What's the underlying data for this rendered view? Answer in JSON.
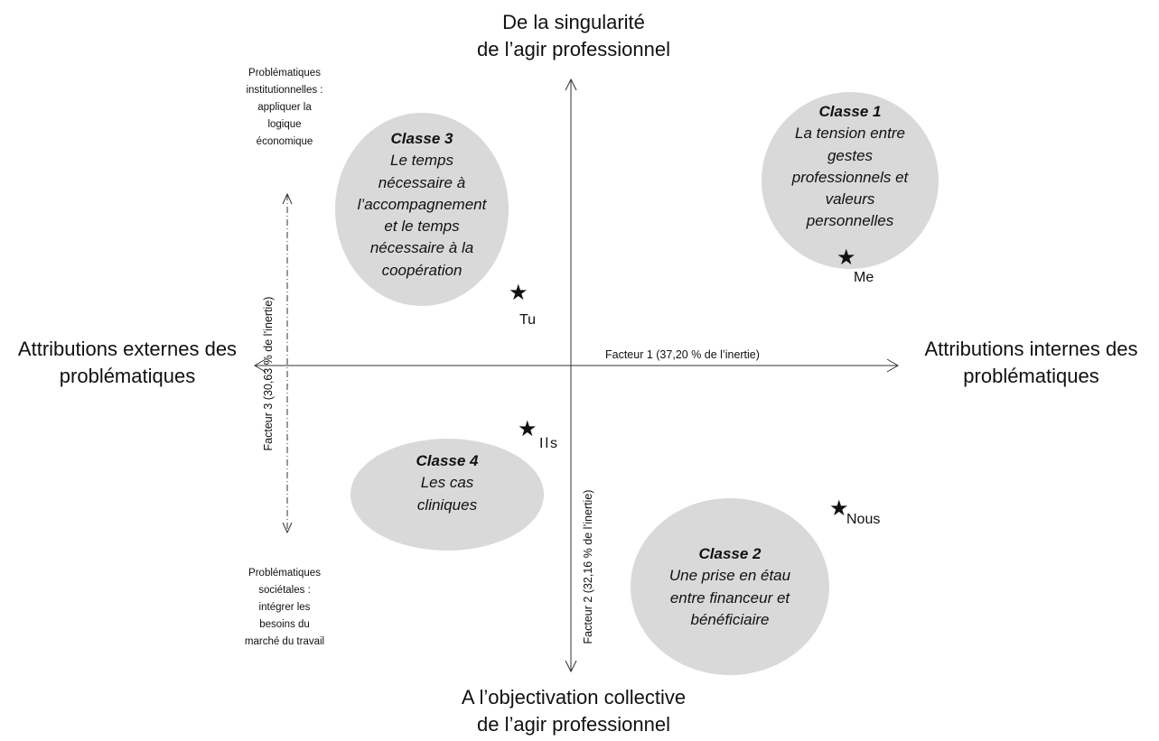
{
  "poles": {
    "top": [
      "De la singularité",
      "de l’agir professionnel"
    ],
    "bottom": [
      "A l’objectivation collective",
      "de l’agir professionnel"
    ],
    "left": [
      "Attributions externes des",
      "problématiques"
    ],
    "right": [
      "Attributions internes des",
      "problématiques"
    ]
  },
  "notes": {
    "top_left": [
      "Problématiques",
      "institutionnelles :",
      "appliquer la",
      "logique",
      "économique"
    ],
    "bottom_left": [
      "Problématiques",
      "sociétales :",
      "intégrer les",
      "besoins du",
      "marché du travail"
    ]
  },
  "axes": {
    "factor1": "Facteur 1 (37,20 % de l’inertie)",
    "factor2": "Facteur 2 (32,16 % de l’inertie)",
    "factor3": "Facteur 3 (30,63 % de l’inertie)"
  },
  "classes": [
    {
      "title": "Classe 1",
      "lines": [
        "La tension entre",
        "gestes",
        "professionnels et",
        "valeurs",
        "personnelles"
      ]
    },
    {
      "title": "Classe 2",
      "lines": [
        "Une prise en étau",
        "entre financeur et",
        "bénéficiaire"
      ]
    },
    {
      "title": "Classe 3",
      "lines": [
        "Le temps",
        "nécessaire à",
        "l’accompagnement",
        "et le temps",
        "nécessaire à la",
        "coopération"
      ]
    },
    {
      "title": "Classe 4",
      "lines": [
        "Les cas",
        "cliniques"
      ]
    }
  ],
  "pronouns": [
    {
      "star": "★",
      "label": "Me"
    },
    {
      "star": "★",
      "label": "Tu"
    },
    {
      "star": "★",
      "label": "Ils"
    },
    {
      "star": "★",
      "label": "Nous"
    }
  ],
  "colors": {
    "ellipse": "#d9d9d9",
    "axis": "#333333"
  }
}
